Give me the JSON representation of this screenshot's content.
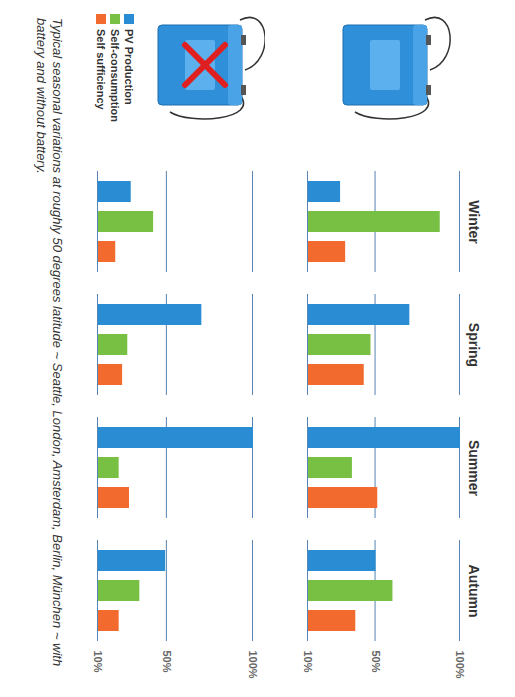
{
  "chart_data": [
    {
      "type": "bar",
      "categories": [
        "Winter",
        "Spring",
        "Summer",
        "Autumn"
      ],
      "series": [
        {
          "name": "PV Production",
          "color": "#2a8dd4",
          "values": [
            29,
            70,
            100,
            50
          ]
        },
        {
          "name": "Self-consumption",
          "color": "#78c043",
          "values": [
            88,
            47,
            36,
            60
          ]
        },
        {
          "name": "Self sufficiency",
          "color": "#f26a2e",
          "values": [
            32,
            43,
            51,
            38
          ]
        }
      ],
      "ylim": [
        10,
        100
      ],
      "yticks": [
        {
          "value": 10,
          "label": "10%"
        },
        {
          "value": 50,
          "label": "50%"
        },
        {
          "value": 100,
          "label": "100%"
        }
      ],
      "grid": true,
      "legend": "left"
    },
    {
      "type": "bar",
      "categories": [
        "Winter",
        "Spring",
        "Summer",
        "Autumn"
      ],
      "series": [
        {
          "name": "PV Production",
          "color": "#2a8dd4",
          "values": [
            29,
            70,
            100,
            49
          ]
        },
        {
          "name": "Self-consumption",
          "color": "#78c043",
          "values": [
            42,
            27,
            22,
            34
          ]
        },
        {
          "name": "Self sufficiency",
          "color": "#f26a2e",
          "values": [
            20,
            24,
            28,
            22
          ]
        }
      ],
      "ylim": [
        10,
        100
      ],
      "yticks": [
        {
          "value": 10,
          "label": "10%"
        },
        {
          "value": 50,
          "label": "50%"
        },
        {
          "value": 100,
          "label": "100%"
        }
      ],
      "grid": true,
      "legend": "left"
    }
  ],
  "caption": "Typical seasonal variations at roughly 50 degrees latitude ~ Seattle, London, Amsterdam, Berlin, München ~ with battery and without battery."
}
